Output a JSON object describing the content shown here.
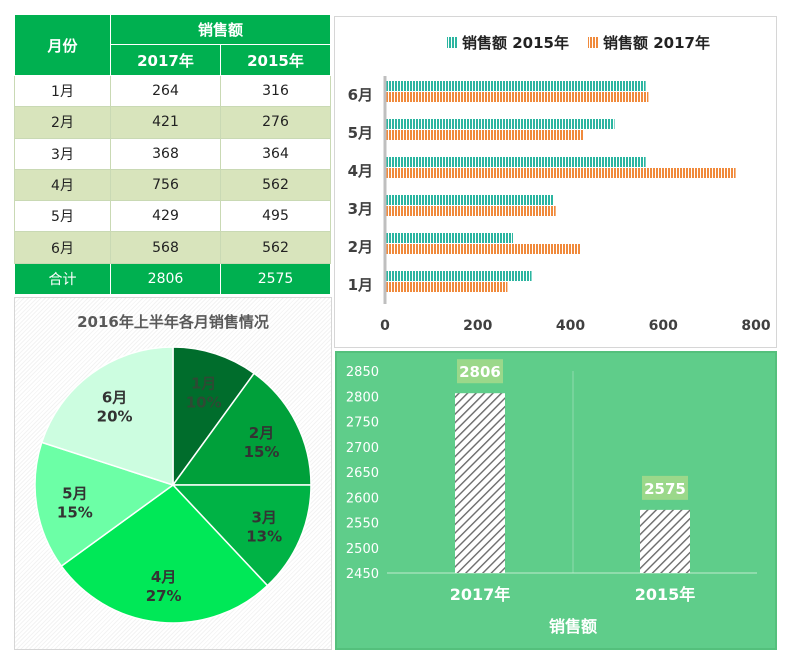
{
  "table": {
    "header_month": "月份",
    "header_sales": "销售额",
    "header_2017": "2017年",
    "header_2015": "2015年",
    "rows": [
      {
        "month": "1月",
        "v2017": "264",
        "v2015": "316"
      },
      {
        "month": "2月",
        "v2017": "421",
        "v2015": "276"
      },
      {
        "month": "3月",
        "v2017": "368",
        "v2015": "364"
      },
      {
        "month": "4月",
        "v2017": "756",
        "v2015": "562"
      },
      {
        "month": "5月",
        "v2017": "429",
        "v2015": "495"
      },
      {
        "month": "6月",
        "v2017": "568",
        "v2015": "562"
      }
    ],
    "total": {
      "label": "合计",
      "v2017": "2806",
      "v2015": "2575"
    }
  },
  "colors": {
    "green": "#00b050",
    "row_alt": "#d8e4bc",
    "teal": "#2bb5a0",
    "orange": "#f08a3c",
    "col_bg": "#5fcd8a"
  },
  "chart_data": [
    {
      "type": "bar",
      "orientation": "horizontal",
      "categories": [
        "1月",
        "2月",
        "3月",
        "4月",
        "5月",
        "6月"
      ],
      "series": [
        {
          "name": "销售额 2015年",
          "values": [
            316,
            276,
            364,
            562,
            495,
            562
          ],
          "color": "#2bb5a0"
        },
        {
          "name": "销售额 2017年",
          "values": [
            264,
            421,
            368,
            756,
            429,
            568
          ],
          "color": "#f08a3c"
        }
      ],
      "xlim": [
        0,
        800
      ],
      "ticks": [
        "0",
        "200",
        "400",
        "600",
        "800"
      ],
      "legend": "top"
    },
    {
      "type": "pie",
      "title": "2016年上半年各月销售情况",
      "labels": [
        "1月",
        "2月",
        "3月",
        "4月",
        "5月",
        "6月"
      ],
      "percent": [
        10,
        15,
        13,
        27,
        15,
        20
      ],
      "pct_labels": [
        "10%",
        "15%",
        "13%",
        "27%",
        "15%",
        "20%"
      ],
      "colors": [
        "#006d2c",
        "#00a03a",
        "#00b345",
        "#00e857",
        "#6cffa6",
        "#ccfde0"
      ]
    },
    {
      "type": "bar",
      "categories": [
        "2017年",
        "2015年"
      ],
      "values": [
        2806,
        2575
      ],
      "value_labels": [
        "2806",
        "2575"
      ],
      "xlabel": "销售额",
      "ylim": [
        2450,
        2850
      ],
      "ticks": [
        "2450",
        "2500",
        "2550",
        "2600",
        "2650",
        "2700",
        "2750",
        "2800",
        "2850"
      ]
    }
  ]
}
